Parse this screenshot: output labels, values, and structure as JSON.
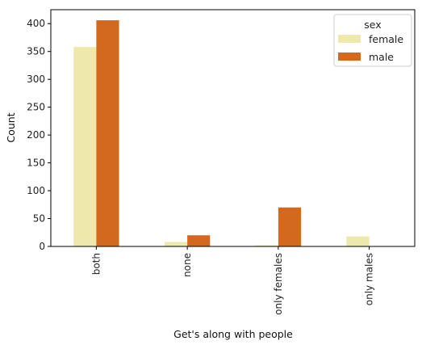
{
  "chart_data": {
    "type": "bar",
    "title": "",
    "xlabel": "Get's along with people",
    "ylabel": "Count",
    "categories": [
      "both",
      "none",
      "only females",
      "only males"
    ],
    "series": [
      {
        "name": "female",
        "values": [
          358,
          8,
          2,
          18
        ],
        "color": "#eee8aa"
      },
      {
        "name": "male",
        "values": [
          406,
          20,
          70,
          0
        ],
        "color": "#d2691e"
      }
    ],
    "ylim": [
      0,
      425
    ],
    "yticks": [
      0,
      50,
      100,
      150,
      200,
      250,
      300,
      350,
      400
    ],
    "legend": {
      "title": "sex",
      "placement": "top-right"
    },
    "grid": false
  }
}
